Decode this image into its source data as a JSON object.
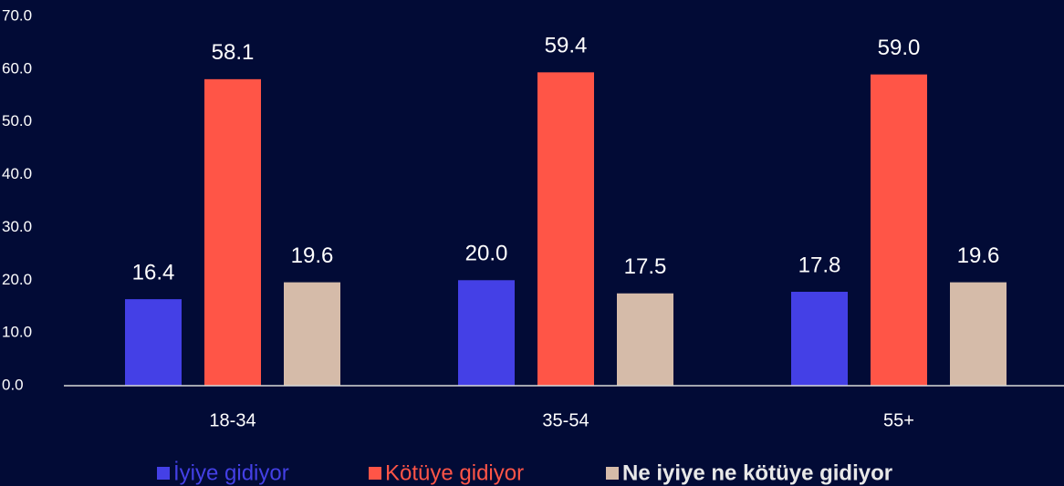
{
  "chart_data": {
    "type": "bar",
    "categories": [
      "18-34",
      "35-54",
      "55+"
    ],
    "series": [
      {
        "name": "İyiye gidiyor",
        "color": "#4440e6",
        "values": [
          16.4,
          20.0,
          17.8
        ],
        "value_labels": [
          "16.4",
          "20.0",
          "17.8"
        ]
      },
      {
        "name": "Kötüye gidiyor",
        "color": "#ff5547",
        "values": [
          58.1,
          59.4,
          59.0
        ],
        "value_labels": [
          "58.1",
          "59.4",
          "59.0"
        ]
      },
      {
        "name": "Ne iyiye ne kötüye gidiyor",
        "color": "#d5bba9",
        "values": [
          19.6,
          17.5,
          19.6
        ],
        "value_labels": [
          "19.6",
          "17.5",
          "19.6"
        ]
      }
    ],
    "ylim": [
      0,
      70
    ],
    "yticks": [
      {
        "value": 0,
        "label": "0.0"
      },
      {
        "value": 10,
        "label": "10.0"
      },
      {
        "value": 20,
        "label": "20.0"
      },
      {
        "value": 30,
        "label": "30.0"
      },
      {
        "value": 40,
        "label": "40.0"
      },
      {
        "value": 50,
        "label": "50.0"
      },
      {
        "value": 60,
        "label": "60.0"
      },
      {
        "value": 70,
        "label": "70.0"
      }
    ],
    "grid": false
  }
}
